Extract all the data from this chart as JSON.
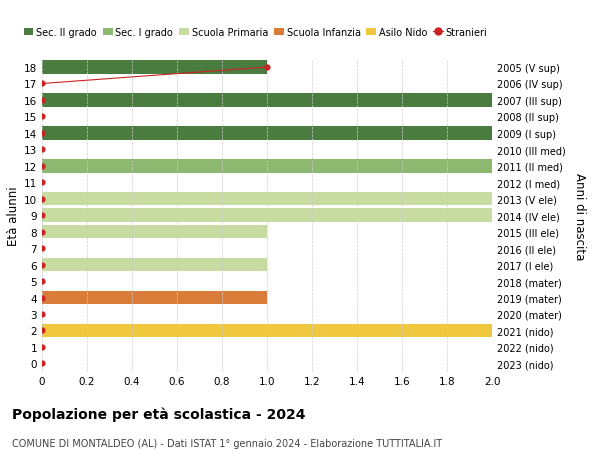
{
  "title": "Popolazione per età scolastica - 2024",
  "subtitle": "COMUNE DI MONTALDEO (AL) - Dati ISTAT 1° gennaio 2024 - Elaborazione TUTTITALIA.IT",
  "ylabel_left": "Età alunni",
  "ylabel_right": "Anni di nascita",
  "xlim": [
    0,
    2.0
  ],
  "xticks": [
    0,
    0.2,
    0.4,
    0.6,
    0.8,
    1.0,
    1.2,
    1.4,
    1.6,
    1.8,
    2.0
  ],
  "ages": [
    0,
    1,
    2,
    3,
    4,
    5,
    6,
    7,
    8,
    9,
    10,
    11,
    12,
    13,
    14,
    15,
    16,
    17,
    18
  ],
  "years": [
    "2023 (nido)",
    "2022 (nido)",
    "2021 (nido)",
    "2020 (mater)",
    "2019 (mater)",
    "2018 (mater)",
    "2017 (I ele)",
    "2016 (II ele)",
    "2015 (III ele)",
    "2014 (IV ele)",
    "2013 (V ele)",
    "2012 (I med)",
    "2011 (II med)",
    "2010 (III med)",
    "2009 (I sup)",
    "2008 (II sup)",
    "2007 (III sup)",
    "2006 (IV sup)",
    "2005 (V sup)"
  ],
  "bars": [
    {
      "age": 2,
      "value": 2.0,
      "color": "#f0c840"
    },
    {
      "age": 4,
      "value": 1.0,
      "color": "#d97c3a"
    },
    {
      "age": 6,
      "value": 1.0,
      "color": "#c8dba0"
    },
    {
      "age": 8,
      "value": 1.0,
      "color": "#c8dba0"
    },
    {
      "age": 9,
      "value": 2.0,
      "color": "#c8dba0"
    },
    {
      "age": 10,
      "value": 2.0,
      "color": "#c8dba0"
    },
    {
      "age": 12,
      "value": 2.0,
      "color": "#8db870"
    },
    {
      "age": 14,
      "value": 2.0,
      "color": "#4a7c3f"
    },
    {
      "age": 16,
      "value": 2.0,
      "color": "#4a7c3f"
    },
    {
      "age": 18,
      "value": 1.0,
      "color": "#4a7c3f"
    }
  ],
  "stranieri_line_ages": [
    17,
    18
  ],
  "stranieri_line_values": [
    0.0,
    1.0
  ],
  "stranieri_dots_ages": [
    0,
    1,
    2,
    3,
    4,
    5,
    6,
    7,
    8,
    9,
    10,
    11,
    12,
    13,
    14,
    15,
    16,
    17,
    18
  ],
  "stranieri_dots_values": [
    0,
    0,
    0,
    0,
    0,
    0,
    0,
    0,
    0,
    0,
    0,
    0,
    0,
    0,
    0,
    0,
    0,
    0,
    1.0
  ],
  "colors": {
    "sec_II": "#4a7c3f",
    "sec_I": "#8db870",
    "primaria": "#c8dba0",
    "infanzia": "#d97c3a",
    "nido": "#f0c840",
    "stranieri": "#cc2222"
  },
  "legend_labels": [
    "Sec. II grado",
    "Sec. I grado",
    "Scuola Primaria",
    "Scuola Infanzia",
    "Asilo Nido",
    "Stranieri"
  ],
  "bar_height": 0.82,
  "background_color": "#ffffff",
  "grid_color": "#cccccc"
}
